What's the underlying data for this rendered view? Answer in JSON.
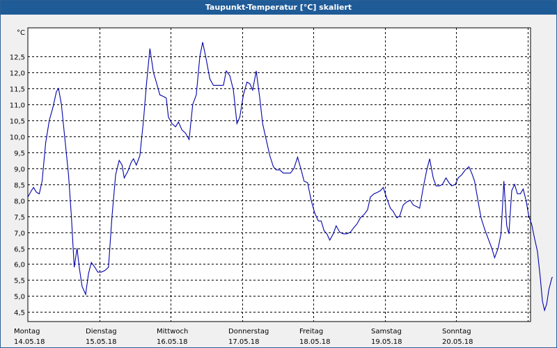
{
  "window": {
    "title": "Taupunkt-Temperatur [°C] skaliert"
  },
  "chart_data": {
    "type": "line",
    "title": "Taupunkt-Temperatur [°C] skaliert",
    "ylabel": "°C",
    "xlabel": "",
    "ylim": [
      4.2,
      13.4
    ],
    "yticks": [
      "4,5",
      "5,0",
      "5,5",
      "6,0",
      "6,5",
      "7,0",
      "7,5",
      "8,0",
      "8,5",
      "9,0",
      "9,5",
      "10,0",
      "10,5",
      "11,0",
      "11,5",
      "12,0",
      "12,5"
    ],
    "yticks_values": [
      4.5,
      5.0,
      5.5,
      6.0,
      6.5,
      7.0,
      7.5,
      8.0,
      8.5,
      9.0,
      9.5,
      10.0,
      10.5,
      11.0,
      11.5,
      12.0,
      12.5
    ],
    "xlim": [
      0,
      7.0
    ],
    "x_categories": [
      {
        "day": "Montag",
        "date": "14.05.18"
      },
      {
        "day": "Dienstag",
        "date": "15.05.18"
      },
      {
        "day": "Mittwoch",
        "date": "16.05.18"
      },
      {
        "day": "Donnerstag",
        "date": "17.05.18"
      },
      {
        "day": "Freitag",
        "date": "18.05.18"
      },
      {
        "day": "Samstag",
        "date": "19.05.18"
      },
      {
        "day": "Sonntag",
        "date": "20.05.18"
      }
    ],
    "grid": true,
    "series": [
      {
        "color": "#0000aa",
        "points": [
          [
            0.0,
            8.1
          ],
          [
            0.05,
            8.3
          ],
          [
            0.08,
            8.4
          ],
          [
            0.12,
            8.25
          ],
          [
            0.16,
            8.2
          ],
          [
            0.2,
            8.6
          ],
          [
            0.25,
            9.8
          ],
          [
            0.3,
            10.5
          ],
          [
            0.35,
            10.9
          ],
          [
            0.4,
            11.4
          ],
          [
            0.43,
            11.5
          ],
          [
            0.47,
            11.0
          ],
          [
            0.52,
            9.9
          ],
          [
            0.57,
            8.8
          ],
          [
            0.61,
            7.5
          ],
          [
            0.65,
            5.9
          ],
          [
            0.69,
            6.5
          ],
          [
            0.72,
            5.9
          ],
          [
            0.76,
            5.3
          ],
          [
            0.81,
            5.05
          ],
          [
            0.85,
            5.7
          ],
          [
            0.89,
            6.05
          ],
          [
            0.94,
            5.9
          ],
          [
            0.98,
            5.75
          ],
          [
            1.03,
            5.75
          ],
          [
            1.08,
            5.8
          ],
          [
            1.13,
            5.9
          ],
          [
            1.18,
            7.5
          ],
          [
            1.23,
            8.8
          ],
          [
            1.28,
            9.25
          ],
          [
            1.32,
            9.1
          ],
          [
            1.35,
            8.7
          ],
          [
            1.4,
            8.9
          ],
          [
            1.45,
            9.2
          ],
          [
            1.48,
            9.3
          ],
          [
            1.52,
            9.1
          ],
          [
            1.57,
            9.4
          ],
          [
            1.62,
            10.5
          ],
          [
            1.66,
            11.6
          ],
          [
            1.71,
            12.75
          ],
          [
            1.76,
            12.0
          ],
          [
            1.8,
            11.7
          ],
          [
            1.85,
            11.3
          ],
          [
            1.9,
            11.25
          ],
          [
            1.94,
            11.2
          ],
          [
            1.97,
            10.6
          ],
          [
            2.02,
            10.4
          ],
          [
            2.07,
            10.3
          ],
          [
            2.11,
            10.45
          ],
          [
            2.16,
            10.2
          ],
          [
            2.21,
            10.1
          ],
          [
            2.26,
            9.9
          ],
          [
            2.31,
            11.0
          ],
          [
            2.36,
            11.3
          ],
          [
            2.41,
            12.5
          ],
          [
            2.45,
            12.95
          ],
          [
            2.5,
            12.4
          ],
          [
            2.55,
            11.8
          ],
          [
            2.6,
            11.6
          ],
          [
            2.65,
            11.6
          ],
          [
            2.7,
            11.6
          ],
          [
            2.74,
            11.6
          ],
          [
            2.78,
            12.05
          ],
          [
            2.83,
            11.9
          ],
          [
            2.88,
            11.45
          ],
          [
            2.93,
            10.4
          ],
          [
            2.97,
            10.6
          ],
          [
            3.02,
            11.3
          ],
          [
            3.07,
            11.7
          ],
          [
            3.11,
            11.65
          ],
          [
            3.15,
            11.45
          ],
          [
            3.2,
            12.05
          ],
          [
            3.25,
            11.2
          ],
          [
            3.29,
            10.4
          ],
          [
            3.34,
            9.9
          ],
          [
            3.39,
            9.4
          ],
          [
            3.44,
            9.05
          ],
          [
            3.48,
            8.95
          ],
          [
            3.53,
            8.95
          ],
          [
            3.58,
            8.85
          ],
          [
            3.63,
            8.85
          ],
          [
            3.68,
            8.85
          ],
          [
            3.73,
            9.0
          ],
          [
            3.78,
            9.35
          ],
          [
            3.83,
            8.95
          ],
          [
            3.87,
            8.6
          ],
          [
            3.92,
            8.55
          ],
          [
            3.97,
            8.0
          ],
          [
            4.02,
            7.6
          ],
          [
            4.07,
            7.35
          ],
          [
            4.11,
            7.35
          ],
          [
            4.15,
            7.05
          ],
          [
            4.19,
            6.95
          ],
          [
            4.23,
            6.75
          ],
          [
            4.28,
            6.95
          ],
          [
            4.32,
            7.2
          ],
          [
            4.37,
            7.0
          ],
          [
            4.42,
            6.95
          ],
          [
            4.47,
            6.95
          ],
          [
            4.52,
            7.0
          ],
          [
            4.57,
            7.15
          ],
          [
            4.61,
            7.25
          ],
          [
            4.66,
            7.45
          ],
          [
            4.71,
            7.55
          ],
          [
            4.76,
            7.7
          ],
          [
            4.8,
            8.1
          ],
          [
            4.85,
            8.2
          ],
          [
            4.9,
            8.25
          ],
          [
            4.94,
            8.3
          ],
          [
            4.98,
            8.4
          ],
          [
            5.03,
            8.05
          ],
          [
            5.08,
            7.75
          ],
          [
            5.12,
            7.65
          ],
          [
            5.17,
            7.45
          ],
          [
            5.21,
            7.5
          ],
          [
            5.26,
            7.85
          ],
          [
            5.31,
            7.95
          ],
          [
            5.36,
            8.0
          ],
          [
            5.4,
            7.85
          ],
          [
            5.45,
            7.8
          ],
          [
            5.49,
            7.75
          ],
          [
            5.54,
            8.4
          ],
          [
            5.59,
            8.95
          ],
          [
            5.63,
            9.3
          ],
          [
            5.68,
            8.7
          ],
          [
            5.72,
            8.45
          ],
          [
            5.77,
            8.45
          ],
          [
            5.81,
            8.5
          ],
          [
            5.86,
            8.7
          ],
          [
            5.9,
            8.55
          ],
          [
            5.94,
            8.45
          ],
          [
            5.99,
            8.5
          ],
          [
            6.03,
            8.7
          ],
          [
            6.08,
            8.8
          ],
          [
            6.13,
            8.95
          ],
          [
            6.18,
            9.05
          ],
          [
            6.22,
            8.85
          ],
          [
            6.26,
            8.6
          ],
          [
            6.31,
            7.95
          ],
          [
            6.35,
            7.45
          ],
          [
            6.4,
            7.1
          ],
          [
            6.45,
            6.8
          ],
          [
            6.5,
            6.5
          ],
          [
            6.54,
            6.2
          ],
          [
            6.59,
            6.5
          ],
          [
            6.63,
            6.95
          ],
          [
            6.67,
            8.6
          ],
          [
            6.71,
            7.2
          ],
          [
            6.74,
            6.95
          ],
          [
            6.78,
            8.3
          ],
          [
            6.82,
            8.5
          ],
          [
            6.86,
            8.2
          ],
          [
            6.9,
            8.2
          ],
          [
            6.94,
            8.35
          ],
          [
            6.98,
            8.0
          ],
          [
            7.02,
            7.5
          ],
          [
            7.06,
            7.25
          ],
          [
            7.1,
            6.8
          ],
          [
            7.14,
            6.4
          ],
          [
            7.18,
            5.6
          ],
          [
            7.21,
            4.85
          ],
          [
            7.24,
            4.55
          ],
          [
            7.27,
            4.75
          ],
          [
            7.3,
            5.2
          ],
          [
            7.34,
            5.55
          ],
          [
            7.35,
            5.6
          ]
        ]
      }
    ]
  }
}
